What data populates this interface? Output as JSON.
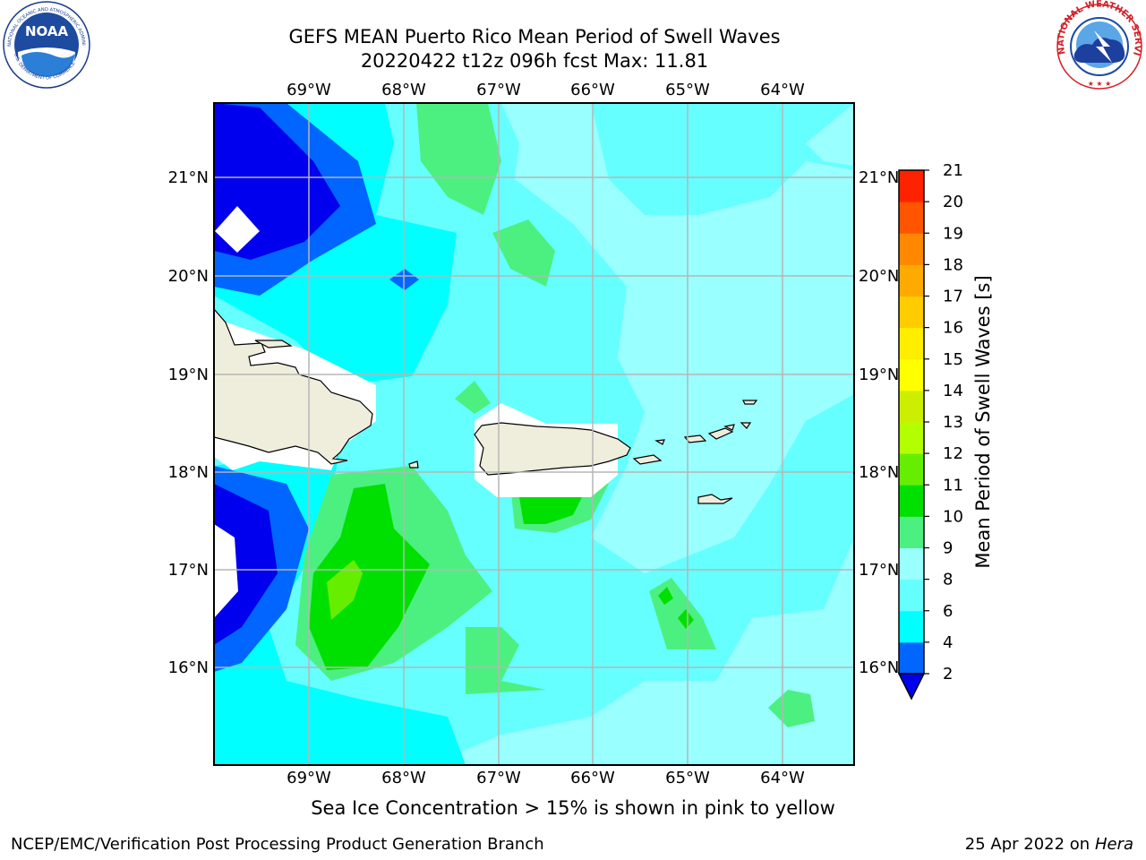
{
  "header": {
    "title_line1": "GEFS MEAN Puerto Rico Mean Period of Swell Waves",
    "title_line2": "20220422 t12z 096h fcst   Max: 11.81"
  },
  "map": {
    "lon_ticks": [
      "69°W",
      "68°W",
      "67°W",
      "66°W",
      "65°W",
      "64°W"
    ],
    "lat_ticks": [
      "21°N",
      "20°N",
      "19°N",
      "18°N",
      "17°N",
      "16°N"
    ],
    "land_color": "#efeedd",
    "max_value": 11.81
  },
  "colorbar": {
    "label": "Mean Period of Swell Waves [s]",
    "ticks": [
      "2",
      "4",
      "6",
      "8",
      "9",
      "10",
      "11",
      "12",
      "13",
      "14",
      "15",
      "16",
      "17",
      "18",
      "19",
      "20",
      "21"
    ],
    "colors": [
      "#0066ff",
      "#00ffff",
      "#66ffff",
      "#99ffff",
      "#4cf080",
      "#00e000",
      "#66ee00",
      "#b3ff00",
      "#ccee00",
      "#ffff00",
      "#ffee00",
      "#ffcc00",
      "#ffaa00",
      "#ff8800",
      "#ff5500",
      "#ff2200",
      "#ff0000"
    ],
    "extend_color": "#0000ee"
  },
  "caption": "Sea Ice Concentration > 15% is shown in pink to yellow",
  "footer": {
    "left": "NCEP/EMC/Verification Post Processing Product Generation Branch",
    "date": "25 Apr 2022 on ",
    "machine": "Hera"
  },
  "logos": {
    "noaa": "NOAA",
    "nws": "NATIONAL WEATHER SERVICE",
    "noaa_ring_top": "NATIONAL OCEANIC AND ATMOSPHERIC ADMINISTRATION",
    "noaa_ring_bottom": "U.S. DEPARTMENT OF COMMERCE"
  }
}
